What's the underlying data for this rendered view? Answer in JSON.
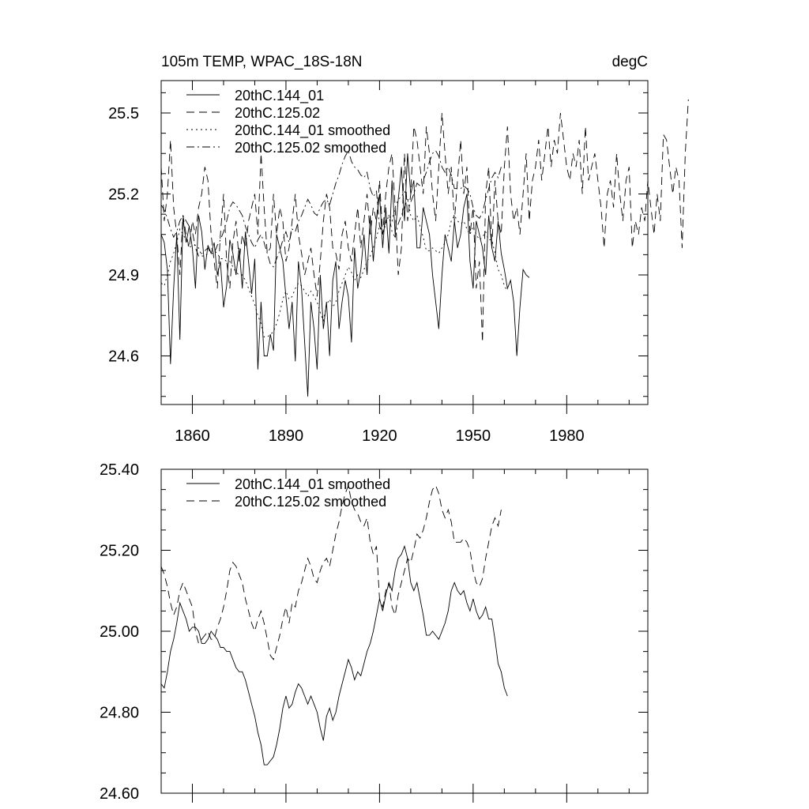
{
  "chart_data": [
    {
      "type": "line",
      "title": "105m TEMP, WPAC_18S-18N",
      "units": "degC",
      "xlim": [
        1850,
        2006
      ],
      "ylim": [
        24.42,
        25.62
      ],
      "x_ticks": [
        1860,
        1890,
        1920,
        1950,
        1980
      ],
      "x_tick_labels": [
        "1860",
        "1890",
        "1920",
        "1950",
        "1980"
      ],
      "y_ticks": [
        24.6,
        24.9,
        25.2,
        25.5
      ],
      "y_tick_labels": [
        "24.6",
        "24.9",
        "25.2",
        "25.5"
      ],
      "legend_position": "top-left",
      "series": [
        {
          "name": "20thC.144_01",
          "style": "solid",
          "x_start": 1850,
          "x_step": 1,
          "values": [
            25.05,
            25.02,
            24.92,
            24.57,
            24.85,
            25.05,
            24.66,
            25.11,
            25.02,
            25.08,
            25.0,
            24.85,
            25.12,
            25.06,
            24.92,
            25.01,
            24.98,
            25.02,
            24.9,
            24.95,
            24.78,
            24.86,
            25.03,
            24.98,
            24.9,
            25.0,
            24.85,
            25.06,
            24.95,
            24.83,
            24.96,
            24.55,
            24.8,
            24.6,
            24.6,
            24.68,
            24.62,
            25.05,
            25.0,
            24.95,
            24.82,
            24.7,
            24.8,
            24.58,
            24.95,
            24.85,
            24.65,
            24.45,
            24.8,
            24.7,
            24.55,
            24.9,
            24.7,
            24.8,
            24.6,
            24.88,
            24.95,
            24.7,
            24.8,
            24.88,
            24.82,
            24.65,
            25.0,
            24.85,
            24.92,
            25.05,
            24.9,
            25.12,
            24.95,
            25.1,
            25.2,
            25.0,
            25.15,
            24.98,
            25.25,
            25.05,
            25.18,
            25.3,
            25.1,
            25.35,
            25.2,
            25.25,
            25.0,
            25.0,
            25.15,
            25.1,
            25.05,
            24.9,
            24.8,
            24.7,
            24.9,
            25.05,
            25.0,
            24.95,
            25.1,
            25.0,
            25.05,
            25.15,
            25.2,
            24.95,
            24.85,
            25.1,
            25.05,
            25.0,
            24.9,
            25.12,
            25.0,
            24.95,
            25.1,
            24.98,
            24.92,
            24.85,
            24.88,
            24.8,
            24.6,
            24.78,
            24.92,
            24.9,
            24.89
          ]
        },
        {
          "name": "20thC.125.02",
          "style": "dashed",
          "x_start": 1850,
          "x_step": 1,
          "values": [
            25.3,
            25.1,
            25.2,
            25.4,
            25.15,
            25.05,
            24.9,
            25.12,
            25.05,
            25.0,
            25.1,
            25.05,
            25.15,
            25.2,
            25.3,
            25.25,
            25.05,
            24.95,
            24.85,
            25.05,
            25.2,
            24.95,
            24.85,
            25.02,
            25.1,
            24.95,
            25.05,
            25.0,
            25.1,
            25.15,
            25.2,
            25.05,
            25.35,
            25.15,
            24.98,
            25.0,
            25.2,
            25.05,
            25.15,
            25.1,
            24.95,
            25.0,
            25.1,
            25.2,
            25.05,
            24.98,
            24.9,
            24.95,
            25.0,
            24.9,
            24.82,
            24.95,
            25.1,
            25.2,
            25.15,
            25.0,
            24.98,
            24.92,
            25.05,
            25.1,
            25.0,
            24.95,
            25.05,
            25.15,
            25.0,
            25.1,
            25.2,
            25.05,
            25.15,
            25.1,
            25.25,
            25.05,
            25.2,
            25.3,
            25.35,
            25.15,
            24.9,
            25.0,
            25.35,
            25.1,
            25.2,
            25.45,
            25.4,
            25.3,
            25.2,
            25.45,
            25.35,
            25.2,
            25.1,
            25.3,
            25.5,
            25.35,
            25.2,
            25.3,
            25.1,
            25.25,
            25.4,
            25.2,
            25.3,
            25.05,
            25.15,
            24.85,
            24.95,
            24.65,
            25.2,
            25.3,
            25.0,
            25.25,
            25.1,
            25.05,
            25.3,
            25.45,
            25.2,
            25.1,
            25.15,
            25.05,
            25.2,
            25.35,
            25.1,
            25.25,
            25.3,
            25.4,
            25.25,
            25.35,
            25.45,
            25.3,
            25.4,
            25.35,
            25.5,
            25.4,
            25.3,
            25.25,
            25.35,
            25.3,
            25.4,
            25.2,
            25.45,
            25.25,
            25.3,
            25.35,
            25.25,
            25.15,
            25.0,
            25.2,
            25.25,
            25.15,
            25.35,
            25.2,
            25.1,
            25.25,
            25.3,
            25.0,
            25.1,
            25.05,
            25.15,
            25.1,
            25.25,
            25.15,
            25.05,
            25.2,
            25.1,
            25.42,
            25.4,
            25.3,
            25.2,
            25.3,
            25.25,
            25.0,
            25.35,
            25.55
          ]
        },
        {
          "name": "20thC.144_01 smoothed",
          "style": "dotted",
          "x_start": 1850,
          "x_step": 1,
          "values": [
            24.87,
            24.86,
            24.9,
            24.95,
            24.98,
            25.02,
            25.07,
            25.05,
            25.03,
            25.0,
            25.01,
            25.01,
            25.0,
            24.97,
            24.97,
            24.98,
            25.0,
            24.99,
            24.98,
            24.96,
            24.96,
            24.95,
            24.95,
            24.93,
            24.91,
            24.9,
            24.9,
            24.88,
            24.85,
            24.82,
            24.79,
            24.75,
            24.72,
            24.67,
            24.67,
            24.68,
            24.69,
            24.72,
            24.76,
            24.81,
            24.84,
            24.81,
            24.82,
            24.85,
            24.87,
            24.86,
            24.84,
            24.82,
            24.84,
            24.82,
            24.8,
            24.76,
            24.73,
            24.79,
            24.81,
            24.78,
            24.8,
            24.84,
            24.87,
            24.9,
            24.93,
            24.91,
            24.88,
            24.9,
            24.89,
            24.92,
            24.95,
            24.97,
            25.0,
            25.04,
            25.08,
            25.05,
            25.09,
            25.12,
            25.1,
            25.15,
            25.18,
            25.19,
            25.21,
            25.18,
            25.12,
            25.1,
            25.12,
            25.08,
            25.04,
            24.99,
            24.99,
            25.0,
            24.99,
            24.98,
            25.0,
            25.02,
            25.05,
            25.1,
            25.12,
            25.1,
            25.09,
            25.1,
            25.07,
            25.05,
            25.08,
            25.05,
            25.03,
            25.04,
            25.06,
            25.03,
            25.03,
            24.98,
            24.92,
            24.9,
            24.86,
            24.84
          ]
        },
        {
          "name": "20thC.125.02 smoothed",
          "style": "dashdot",
          "x_start": 1850,
          "x_step": 1,
          "values": [
            25.16,
            25.14,
            25.11,
            25.07,
            25.04,
            25.06,
            25.1,
            25.12,
            25.1,
            25.08,
            25.06,
            25.0,
            24.97,
            24.98,
            24.99,
            25.0,
            24.98,
            24.98,
            25.01,
            25.03,
            25.06,
            25.1,
            25.15,
            25.17,
            25.16,
            25.14,
            25.12,
            25.08,
            25.05,
            25.02,
            25.0,
            25.03,
            25.05,
            25.02,
            24.98,
            24.94,
            24.93,
            24.96,
            24.99,
            25.03,
            25.06,
            25.02,
            25.07,
            25.06,
            25.1,
            25.12,
            25.15,
            25.18,
            25.16,
            25.13,
            25.12,
            25.15,
            25.17,
            25.18,
            25.16,
            25.2,
            25.24,
            25.27,
            25.31,
            25.34,
            25.36,
            25.32,
            25.3,
            25.29,
            25.27,
            25.26,
            25.28,
            25.22,
            25.19,
            25.21,
            25.08,
            25.06,
            25.1,
            25.12,
            25.06,
            25.04,
            25.09,
            25.12,
            25.15,
            25.18,
            25.17,
            25.2,
            25.24,
            25.23,
            25.25,
            25.28,
            25.32,
            25.35,
            25.36,
            25.34,
            25.3,
            25.28,
            25.3,
            25.27,
            25.22,
            25.22,
            25.22,
            25.23,
            25.22,
            25.2,
            25.15,
            25.12,
            25.11,
            25.13,
            25.18,
            25.22,
            25.26,
            25.28,
            25.26,
            25.3
          ]
        }
      ]
    },
    {
      "type": "line",
      "xlim": [
        1850,
        2006
      ],
      "ylim": [
        24.6,
        25.4
      ],
      "x_ticks": [
        1860,
        1890,
        1920,
        1950,
        1980
      ],
      "y_ticks": [
        24.6,
        24.8,
        25.0,
        25.2,
        25.4
      ],
      "y_tick_labels": [
        "24.60",
        "24.80",
        "25.00",
        "25.20",
        "25.40"
      ],
      "legend_position": "top-left",
      "series": [
        {
          "name": "20thC.144_01 smoothed",
          "style": "solid",
          "ref": 2
        },
        {
          "name": "20thC.125.02 smoothed",
          "style": "dashed",
          "ref": 3
        }
      ]
    }
  ]
}
